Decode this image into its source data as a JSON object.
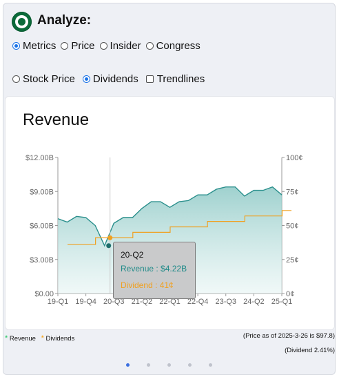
{
  "header": {
    "title": "Analyze:",
    "logo_icon": "starbucks-logo-icon",
    "brand_color": "#0b6b3a"
  },
  "mode_options": [
    {
      "label": "Metrics",
      "selected": true
    },
    {
      "label": "Price",
      "selected": false
    },
    {
      "label": "Insider",
      "selected": false
    },
    {
      "label": "Congress",
      "selected": false
    }
  ],
  "view_options": [
    {
      "label": "Stock Price",
      "type": "radio",
      "selected": false
    },
    {
      "label": "Dividends",
      "type": "radio",
      "selected": true
    },
    {
      "label": "Trendlines",
      "type": "checkbox",
      "selected": false
    }
  ],
  "chart_card": {
    "title": "Revenue"
  },
  "chart_data": {
    "type": "area",
    "title": "Revenue",
    "x_tick_labels": [
      "19-Q1",
      "19-Q4",
      "20-Q3",
      "21-Q2",
      "22-Q1",
      "22-Q4",
      "23-Q3",
      "24-Q2",
      "25-Q1"
    ],
    "y_left_ticks": [
      "$0.00",
      "$3.00B",
      "$6.00B",
      "$9.00B",
      "$12.00B"
    ],
    "y_right_ticks": [
      "0¢",
      "25¢",
      "50¢",
      "75¢",
      "100¢"
    ],
    "ylim_left": [
      0,
      12
    ],
    "ylim_right": [
      0,
      100
    ],
    "grid": false,
    "series": [
      {
        "name": "Revenue",
        "axis": "left",
        "unit": "$B",
        "color": "#2a8f8c",
        "x": [
          "19-Q1",
          "19-Q2",
          "19-Q3",
          "19-Q4",
          "20-Q1",
          "20-Q2",
          "20-Q3",
          "20-Q4",
          "21-Q1",
          "21-Q2",
          "21-Q3",
          "21-Q4",
          "22-Q1",
          "22-Q2",
          "22-Q3",
          "22-Q4",
          "23-Q1",
          "23-Q2",
          "23-Q3",
          "23-Q4",
          "24-Q1",
          "24-Q2",
          "24-Q3",
          "24-Q4",
          "25-Q1"
        ],
        "values": [
          6.6,
          6.3,
          6.8,
          6.7,
          6.0,
          4.22,
          6.2,
          6.7,
          6.7,
          7.5,
          8.1,
          8.1,
          7.6,
          8.1,
          8.2,
          8.7,
          8.7,
          9.2,
          9.4,
          9.4,
          8.6,
          9.1,
          9.1,
          9.4,
          8.7
        ]
      },
      {
        "name": "Dividend",
        "axis": "right",
        "unit": "¢",
        "color": "#f0a020",
        "x": [
          "19-Q1",
          "19-Q2",
          "19-Q3",
          "19-Q4",
          "20-Q1",
          "20-Q2",
          "20-Q3",
          "20-Q4",
          "21-Q1",
          "21-Q2",
          "21-Q3",
          "21-Q4",
          "22-Q1",
          "22-Q2",
          "22-Q3",
          "22-Q4",
          "23-Q1",
          "23-Q2",
          "23-Q3",
          "23-Q4",
          "24-Q1",
          "24-Q2",
          "24-Q3",
          "24-Q4",
          "25-Q1"
        ],
        "values": [
          36,
          36,
          36,
          41,
          41,
          41,
          41,
          45,
          45,
          45,
          45,
          49,
          49,
          49,
          49,
          53,
          53,
          53,
          53,
          57,
          57,
          57,
          57,
          61,
          61
        ]
      }
    ],
    "highlight": {
      "index": 5
    }
  },
  "tooltip": {
    "period": "20-Q2",
    "revenue_text": "Revenue : $4.22B",
    "dividend_text": "Dividend : 41¢"
  },
  "legend": {
    "revenue_label": "Revenue",
    "dividend_label": "Dividends"
  },
  "footer": {
    "price_note": "(Price as of 2025-3-26 is $97.8)",
    "dividend_note": "(Dividend 2.41%)"
  },
  "pagination": {
    "count": 5,
    "active": 0
  }
}
